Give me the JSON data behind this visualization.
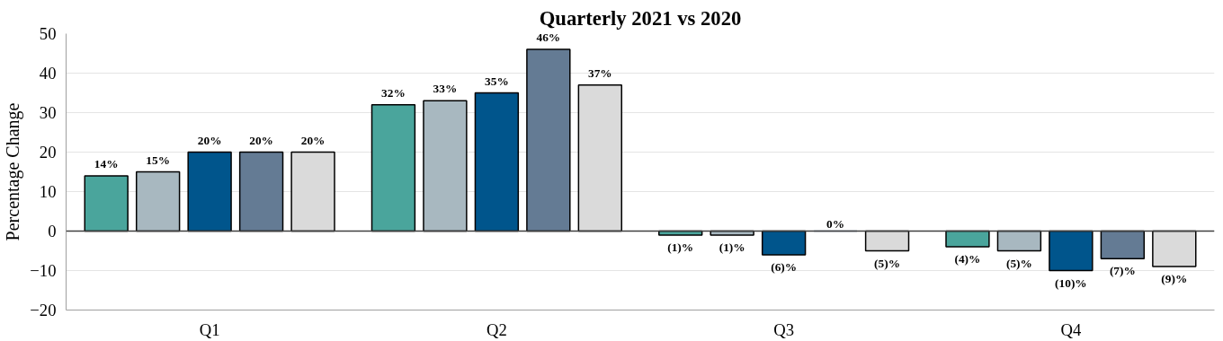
{
  "chart_data": {
    "type": "bar",
    "title": "Quarterly 2021 vs 2020",
    "ylabel": "Percentage Change",
    "categories": [
      "Q1",
      "Q2",
      "Q3",
      "Q4"
    ],
    "series": [
      {
        "color": "#4aa59c",
        "values": [
          14,
          32,
          -1,
          -4
        ],
        "value_labels": [
          "14%",
          "32%",
          "(1)%",
          "(4)%"
        ]
      },
      {
        "color": "#a8b8c0",
        "values": [
          15,
          33,
          -1,
          -5
        ],
        "value_labels": [
          "15%",
          "33%",
          "(1)%",
          "(5)%"
        ]
      },
      {
        "color": "#00558c",
        "values": [
          20,
          35,
          -6,
          -10
        ],
        "value_labels": [
          "20%",
          "35%",
          "(6)%",
          "(10)%"
        ]
      },
      {
        "color": "#647b94",
        "values": [
          20,
          46,
          0,
          -7
        ],
        "value_labels": [
          "20%",
          "46%",
          "0%",
          "(7)%"
        ]
      },
      {
        "color": "#dadada",
        "values": [
          20,
          37,
          -5,
          -9
        ],
        "value_labels": [
          "20%",
          "37%",
          "(5)%",
          "(9)%"
        ]
      }
    ],
    "ylim": [
      -20,
      50
    ],
    "yticks": [
      -20,
      -10,
      0,
      10,
      20,
      30,
      40,
      50
    ],
    "grid": "y",
    "ref_lines": [
      {
        "axis": "y",
        "value": 0,
        "color": "#404040"
      }
    ]
  }
}
